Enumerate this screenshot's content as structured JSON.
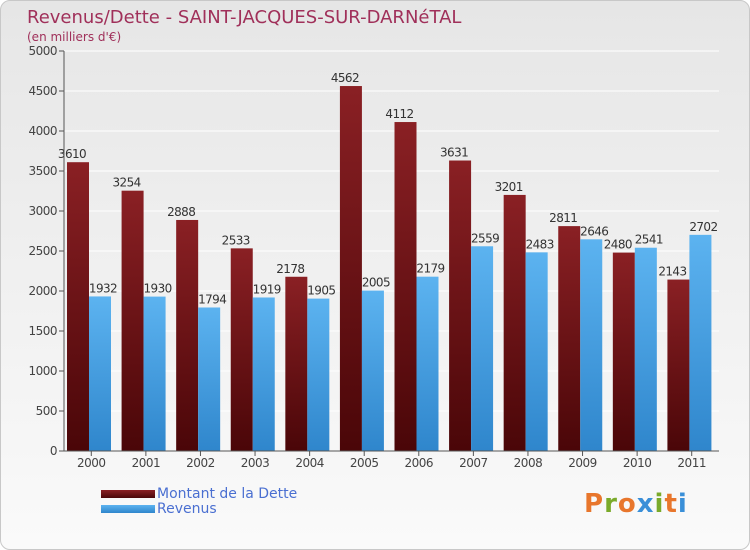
{
  "title": "Revenus/Dette - SAINT-JACQUES-SUR-DARNéTAL",
  "subtitle": "(en milliers d'€)",
  "logo_text": "Proxiti",
  "colors": {
    "dette": "#7a1518",
    "revenus": "#4aa3e6",
    "title": "#a0305a",
    "legend_text": "#4a6fd1"
  },
  "chart_data": {
    "type": "bar",
    "title": "Revenus/Dette - SAINT-JACQUES-SUR-DARNéTAL",
    "subtitle": "(en milliers d'€)",
    "xlabel": "",
    "ylabel": "",
    "categories": [
      "2000",
      "2001",
      "2002",
      "2003",
      "2004",
      "2005",
      "2006",
      "2007",
      "2008",
      "2009",
      "2010",
      "2011"
    ],
    "series": [
      {
        "name": "Montant de la Dette",
        "values": [
          3610,
          3254,
          2888,
          2533,
          2178,
          4562,
          4112,
          3631,
          3201,
          2811,
          2480,
          2143
        ]
      },
      {
        "name": "Revenus",
        "values": [
          1932,
          1930,
          1794,
          1919,
          1905,
          2005,
          2179,
          2559,
          2483,
          2646,
          2541,
          2702
        ]
      }
    ],
    "ylim": [
      0,
      5000
    ],
    "yticks": [
      "0",
      "500",
      "1000",
      "1500",
      "2000",
      "2500",
      "3000",
      "3500",
      "4000",
      "4500",
      "5000"
    ],
    "grid": true,
    "legend_position": "bottom-left"
  }
}
